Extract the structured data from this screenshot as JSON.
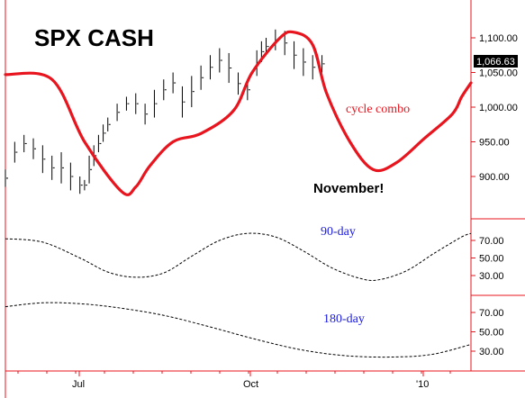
{
  "chart_data": {
    "type": "line",
    "title": "SPX CASH",
    "last_price_label": "1,066.63",
    "x_ticks": [
      "Jul",
      "Oct",
      "'10"
    ],
    "panels": [
      {
        "id": "price",
        "ylim": [
          850,
          1150
        ],
        "y_ticks": [
          {
            "v": 1100,
            "label": "1,100.00"
          },
          {
            "v": 1050,
            "label": "1,050.00"
          },
          {
            "v": 1000,
            "label": "1,000.00"
          },
          {
            "v": 950,
            "label": "950.00"
          },
          {
            "v": 900,
            "label": "900.00"
          }
        ],
        "annotations": {
          "cycle": "cycle combo",
          "callout": "November!"
        },
        "cycle_color": "#e8141e",
        "cycle_series": {
          "x": [
            0,
            10,
            17,
            25,
            28,
            31,
            36,
            42,
            49,
            53,
            59,
            62,
            66,
            69,
            74,
            79,
            84,
            90,
            96,
            98,
            100
          ],
          "y": [
            1047,
            1040,
            950,
            878,
            885,
            915,
            950,
            962,
            995,
            1050,
            1100,
            1108,
            1090,
            1020,
            950,
            910,
            920,
            955,
            990,
            1015,
            1035
          ]
        },
        "price_bars": {
          "x": [
            0,
            2,
            4,
            6,
            8,
            10,
            12,
            14,
            16,
            17,
            18,
            19,
            20,
            21,
            22,
            24,
            26,
            28,
            30,
            32,
            34,
            36,
            38,
            40,
            42,
            44,
            46,
            48,
            50,
            52,
            54,
            55,
            56,
            58,
            60,
            62,
            64,
            66,
            68
          ],
          "high": [
            910,
            950,
            960,
            955,
            945,
            930,
            935,
            920,
            900,
            895,
            930,
            945,
            960,
            975,
            985,
            1005,
            1015,
            1020,
            1005,
            1025,
            1040,
            1050,
            1030,
            1045,
            1060,
            1075,
            1085,
            1078,
            1050,
            1040,
            1082,
            1095,
            1100,
            1112,
            1110,
            1095,
            1085,
            1075,
            1075
          ],
          "low": [
            885,
            920,
            935,
            925,
            905,
            895,
            890,
            880,
            875,
            880,
            890,
            915,
            935,
            950,
            965,
            980,
            995,
            990,
            975,
            985,
            1010,
            1020,
            985,
            1000,
            1025,
            1040,
            1050,
            1035,
            1018,
            1010,
            1045,
            1065,
            1075,
            1082,
            1075,
            1055,
            1045,
            1040,
            1050
          ]
        }
      },
      {
        "id": "90-day",
        "label": "90-day",
        "ylim": [
          20,
          85
        ],
        "y_ticks": [
          {
            "v": 70,
            "label": "70.00"
          },
          {
            "v": 50,
            "label": "50.00"
          },
          {
            "v": 30,
            "label": "30.00"
          }
        ],
        "series": {
          "x": [
            0,
            8,
            16,
            22,
            28,
            34,
            40,
            46,
            52,
            58,
            64,
            70,
            76,
            80,
            86,
            92,
            98,
            100
          ],
          "y": [
            72,
            68,
            50,
            34,
            28,
            33,
            52,
            70,
            78,
            74,
            58,
            39,
            27,
            25,
            35,
            55,
            74,
            78
          ]
        }
      },
      {
        "id": "180-day",
        "label": "180-day",
        "ylim": [
          15,
          85
        ],
        "y_ticks": [
          {
            "v": 70,
            "label": "70.00"
          },
          {
            "v": 50,
            "label": "50.00"
          },
          {
            "v": 30,
            "label": "30.00"
          }
        ],
        "series": {
          "x": [
            0,
            8,
            16,
            24,
            34,
            44,
            54,
            64,
            74,
            84,
            92,
            100
          ],
          "y": [
            76,
            80,
            79,
            75,
            67,
            55,
            42,
            31,
            25,
            24,
            27,
            37
          ]
        }
      }
    ],
    "grid": false
  }
}
